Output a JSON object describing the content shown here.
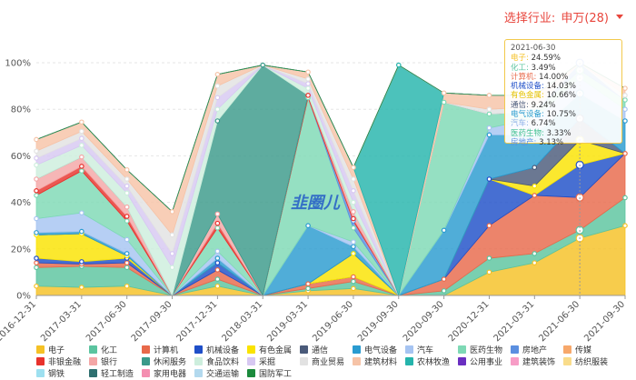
{
  "header": {
    "select_label": "选择行业:",
    "select_value": "申万(28)"
  },
  "watermark": "韭圈儿",
  "chart_data": {
    "type": "area",
    "stacked": true,
    "x": [
      "2016-12-31",
      "2017-03-31",
      "2017-06-30",
      "2017-09-30",
      "2017-12-31",
      "2018-03-31",
      "2019-03-31",
      "2019-06-30",
      "2019-09-30",
      "2020-09-30",
      "2020-12-31",
      "2021-03-31",
      "2021-06-30",
      "2021-09-30"
    ],
    "ylim": [
      0,
      100
    ],
    "yticks": [
      0,
      20,
      40,
      60,
      80,
      100
    ],
    "ytick_labels": [
      "0%",
      "20%",
      "40%",
      "60%",
      "80%",
      "100%"
    ],
    "series": [
      {
        "name": "电子",
        "color": "#f5c125",
        "values": [
          4,
          3.5,
          4,
          0,
          4,
          0,
          2,
          3,
          0,
          0,
          10,
          14,
          24.59,
          30
        ]
      },
      {
        "name": "化工",
        "color": "#5bc49f",
        "values": [
          8,
          9,
          8,
          0,
          3,
          0,
          1,
          3,
          0,
          2,
          6,
          4,
          3.49,
          12
        ]
      },
      {
        "name": "计算机",
        "color": "#e8694a",
        "values": [
          2,
          1,
          2,
          0,
          4,
          0,
          2,
          2,
          0,
          5,
          14,
          25,
          14.0,
          19
        ]
      },
      {
        "name": "机械设备",
        "color": "#1f4fc8",
        "values": [
          2,
          1,
          2,
          0,
          3,
          0,
          0,
          0,
          0,
          0,
          20,
          0,
          14.03,
          0
        ]
      },
      {
        "name": "有色金属",
        "color": "#fae300",
        "values": [
          10,
          12,
          1,
          0,
          0,
          0,
          0,
          10,
          0,
          0,
          0,
          4,
          10.66,
          0
        ]
      },
      {
        "name": "通信",
        "color": "#4a5a7a",
        "values": [
          0,
          0,
          0,
          0,
          0,
          0,
          0,
          0,
          0,
          0,
          0,
          8,
          9.24,
          0
        ]
      },
      {
        "name": "电气设备",
        "color": "#2a9bd0",
        "values": [
          1,
          1,
          1,
          0,
          2,
          0,
          25,
          3,
          0,
          21,
          19,
          14,
          10.75,
          14
        ]
      },
      {
        "name": "汽车",
        "color": "#a6c4f2",
        "values": [
          6,
          8,
          6,
          0,
          3,
          0,
          0,
          2,
          0,
          0,
          3,
          7,
          6.74,
          5
        ]
      },
      {
        "name": "医药生物",
        "color": "#7ed9b5",
        "values": [
          10,
          18,
          8,
          0,
          10,
          0,
          55,
          6,
          0,
          55,
          6,
          3,
          3.33,
          4
        ]
      },
      {
        "name": "房地产",
        "color": "#5b8fe0",
        "values": [
          0,
          0,
          0,
          0,
          0,
          0,
          0,
          3,
          0,
          0,
          0,
          0,
          3.13,
          0
        ]
      },
      {
        "name": "传媒",
        "color": "#f7a86b",
        "values": [
          0,
          0,
          0,
          0,
          0,
          0,
          0,
          0,
          0,
          0,
          0,
          0,
          0,
          0
        ]
      },
      {
        "name": "非银金融",
        "color": "#e8322c",
        "values": [
          2,
          2,
          2,
          0,
          2,
          0,
          1,
          1,
          0,
          0,
          0,
          0,
          0,
          0
        ]
      },
      {
        "name": "银行",
        "color": "#f4a6a6",
        "values": [
          5,
          4,
          4,
          0,
          4,
          0,
          0,
          3,
          0,
          0,
          0,
          0,
          0,
          0
        ]
      },
      {
        "name": "休闲服务",
        "color": "#3a9a8a",
        "values": [
          0,
          0,
          0,
          0,
          40,
          99,
          0,
          0,
          0,
          0,
          0,
          0,
          0,
          0
        ]
      },
      {
        "name": "食品饮料",
        "color": "#cdeedd",
        "values": [
          6,
          5,
          6,
          12,
          5,
          0,
          3,
          4,
          0,
          0,
          0,
          0,
          0,
          0
        ]
      },
      {
        "name": "采掘",
        "color": "#d7c8f2",
        "values": [
          3,
          3,
          3,
          6,
          5,
          0,
          2,
          5,
          0,
          0,
          0,
          0,
          0,
          0
        ]
      },
      {
        "name": "商业贸易",
        "color": "#e2e2e2",
        "values": [
          3,
          3,
          3,
          8,
          5,
          0,
          2,
          5,
          0,
          0,
          2,
          2,
          0,
          2
        ]
      },
      {
        "name": "建筑材料",
        "color": "#f6c3a7",
        "values": [
          5,
          4,
          4,
          10,
          5,
          0,
          3,
          5,
          0,
          4,
          6,
          5,
          0,
          3
        ]
      },
      {
        "name": "农林牧渔",
        "color": "#25b4ac",
        "values": [
          0,
          0,
          0,
          0,
          0,
          0,
          0,
          0,
          99,
          0,
          0,
          0,
          0,
          0
        ]
      },
      {
        "name": "公用事业",
        "color": "#6a2fc1",
        "values": [
          0,
          0,
          0,
          0,
          0,
          0,
          0,
          0,
          0,
          0,
          0,
          0,
          0,
          0
        ]
      },
      {
        "name": "建筑装饰",
        "color": "#f79cc6",
        "values": [
          0,
          0,
          0,
          0,
          0,
          0,
          0,
          0,
          0,
          0,
          0,
          0,
          0,
          0
        ]
      },
      {
        "name": "纺织服装",
        "color": "#f9dc8b",
        "values": [
          0,
          0,
          0,
          0,
          0,
          0,
          0,
          0,
          0,
          0,
          0,
          0,
          0,
          0
        ]
      },
      {
        "name": "钢铁",
        "color": "#9ee0f0",
        "values": [
          0,
          0,
          0,
          0,
          0,
          0,
          0,
          0,
          0,
          0,
          0,
          0,
          0,
          0
        ]
      },
      {
        "name": "轻工制造",
        "color": "#2e6f6f",
        "values": [
          0,
          0,
          0,
          0,
          0,
          0,
          0,
          0,
          0,
          0,
          0,
          0,
          0,
          0
        ]
      },
      {
        "name": "家用电器",
        "color": "#f48fb1",
        "values": [
          0,
          0,
          0,
          0,
          0,
          0,
          0,
          0,
          0,
          0,
          0,
          0,
          0,
          0
        ]
      },
      {
        "name": "交通运输",
        "color": "#b3d9ee",
        "values": [
          0,
          0,
          0,
          0,
          0,
          0,
          0,
          0,
          0,
          0,
          0,
          0,
          0,
          0
        ]
      },
      {
        "name": "国防军工",
        "color": "#1b8a3c",
        "values": [
          0,
          0,
          0,
          0,
          0,
          0,
          0,
          0,
          0,
          0,
          0,
          0,
          0,
          0
        ]
      }
    ],
    "highlight_index": 12,
    "tooltip": {
      "title": "2021-06-30",
      "rows": [
        {
          "name": "电子",
          "value": "24.59%",
          "color": "#f5c125"
        },
        {
          "name": "化工",
          "value": "3.49%",
          "color": "#5bc49f"
        },
        {
          "name": "计算机",
          "value": "14.00%",
          "color": "#e8694a"
        },
        {
          "name": "机械设备",
          "value": "14.03%",
          "color": "#1f4fc8"
        },
        {
          "name": "有色金属",
          "value": "10.66%",
          "color": "#e6c200"
        },
        {
          "name": "通信",
          "value": "9.24%",
          "color": "#4a5a7a"
        },
        {
          "name": "电气设备",
          "value": "10.75%",
          "color": "#2a9bd0"
        },
        {
          "name": "汽车",
          "value": "6.74%",
          "color": "#8aaee8"
        },
        {
          "name": "医药生物",
          "value": "3.33%",
          "color": "#3fbf8f"
        },
        {
          "name": "房地产",
          "value": "3.13%",
          "color": "#5b8fe0"
        }
      ]
    }
  }
}
